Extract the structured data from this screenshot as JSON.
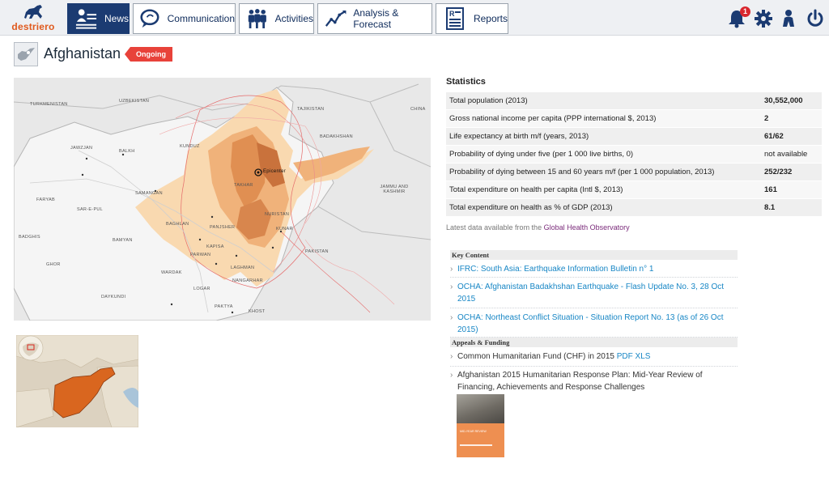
{
  "brand": {
    "name": "destriero"
  },
  "nav": {
    "tabs": [
      {
        "label": "News",
        "icon": "news-reader-icon",
        "active": true
      },
      {
        "label": "Communication",
        "icon": "chat-bubble-icon",
        "active": false
      },
      {
        "label": "Activities",
        "icon": "people-group-icon",
        "active": false
      },
      {
        "label": "Analysis & Forecast",
        "icon": "trend-chart-icon",
        "active": false
      },
      {
        "label": "Reports",
        "icon": "report-document-icon",
        "active": false
      }
    ],
    "notification_count": "1",
    "right_icons": [
      "bell-icon",
      "gear-icon",
      "user-icon",
      "power-icon"
    ]
  },
  "country": {
    "name": "Afghanistan",
    "status": "Ongoing"
  },
  "map": {
    "countries": [
      "TURKMENISTAN",
      "UZBEKISTAN",
      "TAJIKISTAN",
      "CHINA",
      "JAMMU AND KASHMIR",
      "PAKISTAN"
    ],
    "provinces": [
      "BADAKHSHAN",
      "TAKHAR",
      "BALKH",
      "JAWZJAN",
      "FARYAB",
      "SAR-E-PUL",
      "SAMANGAN",
      "BAGHLAN",
      "BAMYAN",
      "PANJSHER",
      "KAPISA",
      "LAGHMAN",
      "NANGARHAR",
      "KUNAR",
      "NURISTAN",
      "PARWAN",
      "WARDAK",
      "LOGAR",
      "GHOR",
      "DAYKUNDI",
      "PAKTYA",
      "KHOST",
      "BADGHIS",
      "KUNDUZ"
    ],
    "epicenter_label": "Epicenter"
  },
  "statistics": {
    "title": "Statistics",
    "rows": [
      {
        "label": "Total population (2013)",
        "value": "30,552,000",
        "bold": true
      },
      {
        "label": "Gross national income per capita (PPP international $, 2013)",
        "value": "2",
        "bold": true
      },
      {
        "label": "Life expectancy at birth m/f (years, 2013)",
        "value": "61/62",
        "bold": true
      },
      {
        "label": "Probability of dying under five (per 1 000 live births, 0)",
        "value": "not available",
        "bold": false
      },
      {
        "label": "Probability of dying between 15 and 60 years m/f (per 1 000 population, 2013)",
        "value": "252/232",
        "bold": true
      },
      {
        "label": "Total expenditure on health per capita (Intl $, 2013)",
        "value": "161",
        "bold": true
      },
      {
        "label": "Total expenditure on health as % of GDP (2013)",
        "value": "8.1",
        "bold": true
      }
    ],
    "source_prefix": "Latest data available from the",
    "source_link": "Global Health Observatory"
  },
  "key_content": {
    "heading": "Key Content",
    "items": [
      "IFRC: South Asia: Earthquake Information Bulletin n° 1",
      "OCHA: Afghanistan Badakhshan Earthquake - Flash Update No. 3, 28 Oct 2015",
      "OCHA: Northeast Conflict Situation - Situation Report No. 13 (as of 26 Oct 2015)"
    ]
  },
  "appeals": {
    "heading": "Appeals & Funding",
    "chf_text": "Common Humanitarian Fund (CHF) in 2015",
    "chf_pdf": "PDF",
    "chf_xls": "XLS",
    "hrp_title": "Afghanistan 2015 Humanitarian Response Plan: Mid-Year Review of Financing, Achievements and Response Challenges",
    "cover_text": "MID-YEAR REVIEW"
  }
}
